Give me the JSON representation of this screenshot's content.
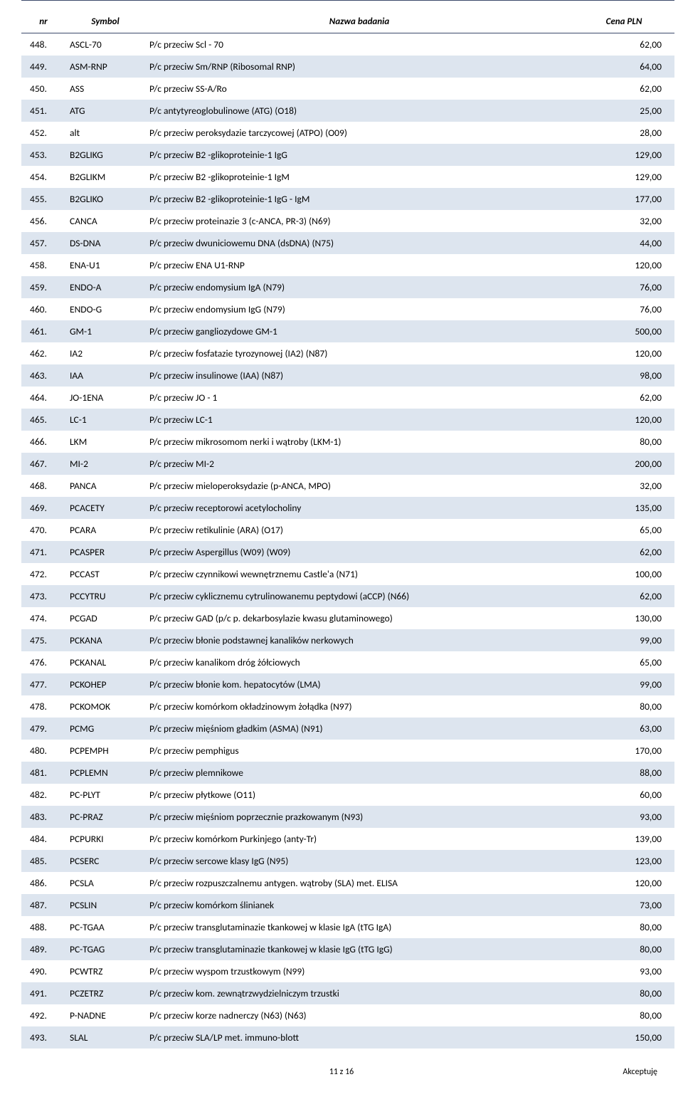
{
  "headers": {
    "nr": "nr",
    "symbol": "Symbol",
    "name": "Nazwa badania",
    "price": "Cena PLN"
  },
  "rows": [
    {
      "nr": "448.",
      "symbol": "ASCL-70",
      "name": "P/c przeciw  Scl - 70",
      "price": "62,00"
    },
    {
      "nr": "449.",
      "symbol": "ASM-RNP",
      "name": "P/c przeciw Sm/RNP (Ribosomal RNP)",
      "price": "64,00"
    },
    {
      "nr": "450.",
      "symbol": "ASS",
      "name": "P/c przeciw SS-A/Ro",
      "price": "62,00"
    },
    {
      "nr": "451.",
      "symbol": "ATG",
      "name": "P/c antytyreoglobulinowe (ATG) (O18)",
      "price": "25,00"
    },
    {
      "nr": "452.",
      "symbol": "alt",
      "name": "P/c przeciw peroksydazie tarczycowej (ATPO) (O09)",
      "price": "28,00"
    },
    {
      "nr": "453.",
      "symbol": "B2GLIKG",
      "name": "P/c przeciw B2 -glikoproteinie-1 IgG",
      "price": "129,00"
    },
    {
      "nr": "454.",
      "symbol": "B2GLIKM",
      "name": "P/c przeciw B2 -glikoproteinie-1 IgM",
      "price": "129,00"
    },
    {
      "nr": "455.",
      "symbol": "B2GLIKO",
      "name": "P/c przeciw B2 -glikoproteinie-1 IgG - IgM",
      "price": "177,00"
    },
    {
      "nr": "456.",
      "symbol": "CANCA",
      "name": "P/c przeciw proteinazie 3 (c-ANCA, PR-3) (N69)",
      "price": "32,00"
    },
    {
      "nr": "457.",
      "symbol": "DS-DNA",
      "name": "P/c przeciw dwuniciowemu DNA (dsDNA) (N75)",
      "price": "44,00"
    },
    {
      "nr": "458.",
      "symbol": "ENA-U1",
      "name": "P/c przeciw ENA U1-RNP",
      "price": "120,00"
    },
    {
      "nr": "459.",
      "symbol": "ENDO-A",
      "name": "P/c przeciw endomysium IgA (N79)",
      "price": "76,00"
    },
    {
      "nr": "460.",
      "symbol": "ENDO-G",
      "name": "P/c przeciw endomysium IgG (N79)",
      "price": "76,00"
    },
    {
      "nr": "461.",
      "symbol": "GM-1",
      "name": "P/c przeciw gangliozydowe GM-1",
      "price": "500,00"
    },
    {
      "nr": "462.",
      "symbol": "IA2",
      "name": "P/c przeciw fosfatazie tyrozynowej (IA2) (N87)",
      "price": "120,00"
    },
    {
      "nr": "463.",
      "symbol": "IAA",
      "name": "P/c przeciw insulinowe (IAA) (N87)",
      "price": "98,00"
    },
    {
      "nr": "464.",
      "symbol": "JO-1ENA",
      "name": "P/c przeciw JO - 1",
      "price": "62,00"
    },
    {
      "nr": "465.",
      "symbol": "LC-1",
      "name": "P/c przeciw LC-1",
      "price": "120,00"
    },
    {
      "nr": "466.",
      "symbol": "LKM",
      "name": "P/c przeciw mikrosomom nerki i wątroby (LKM-1)",
      "price": "80,00"
    },
    {
      "nr": "467.",
      "symbol": "MI-2",
      "name": "P/c przeciw MI-2",
      "price": "200,00"
    },
    {
      "nr": "468.",
      "symbol": "PANCA",
      "name": "P/c przeciw mieloperoksydazie (p-ANCA, MPO)",
      "price": "32,00"
    },
    {
      "nr": "469.",
      "symbol": "PCACETY",
      "name": "P/c przeciw receptorowi acetylocholiny",
      "price": "135,00"
    },
    {
      "nr": "470.",
      "symbol": "PCARA",
      "name": "P/c przeciw retikulinie (ARA) (O17)",
      "price": "65,00"
    },
    {
      "nr": "471.",
      "symbol": "PCASPER",
      "name": "P/c przeciw Aspergillus (W09) (W09)",
      "price": "62,00"
    },
    {
      "nr": "472.",
      "symbol": "PCCAST",
      "name": "P/c przeciw czynnikowi wewnętrznemu Castle'a (N71)",
      "price": "100,00"
    },
    {
      "nr": "473.",
      "symbol": "PCCYTRU",
      "name": "P/c przeciw cyklicznemu cytrulinowanemu peptydowi (aCCP) (N66)",
      "price": "62,00"
    },
    {
      "nr": "474.",
      "symbol": "PCGAD",
      "name": "P/c przeciw GAD (p/c p. dekarbosylazie kwasu glutaminowego)",
      "price": "130,00"
    },
    {
      "nr": "475.",
      "symbol": "PCKANA",
      "name": "P/c przeciw błonie podstawnej kanalików nerkowych",
      "price": "99,00"
    },
    {
      "nr": "476.",
      "symbol": "PCKANAL",
      "name": "P/c przeciw kanalikom dróg żółciowych",
      "price": "65,00"
    },
    {
      "nr": "477.",
      "symbol": "PCKOHEP",
      "name": "P/c przeciw błonie kom. hepatocytów (LMA)",
      "price": "99,00"
    },
    {
      "nr": "478.",
      "symbol": "PCKOMOK",
      "name": "P/c przeciw komórkom okładzinowym żołądka (N97)",
      "price": "80,00"
    },
    {
      "nr": "479.",
      "symbol": "PCMG",
      "name": "P/c przeciw mięśniom gładkim (ASMA) (N91)",
      "price": "63,00"
    },
    {
      "nr": "480.",
      "symbol": "PCPEMPH",
      "name": "P/c przeciw pemphigus",
      "price": "170,00"
    },
    {
      "nr": "481.",
      "symbol": "PCPLEMN",
      "name": "P/c przeciw plemnikowe",
      "price": "88,00"
    },
    {
      "nr": "482.",
      "symbol": "PC-PLYT",
      "name": "P/c przeciw płytkowe (O11)",
      "price": "60,00"
    },
    {
      "nr": "483.",
      "symbol": "PC-PRAZ",
      "name": "P/c przeciw mięśniom poprzecznie prazkowanym (N93)",
      "price": "93,00"
    },
    {
      "nr": "484.",
      "symbol": "PCPURKI",
      "name": "P/c przeciw komórkom Purkinjego (anty-Tr)",
      "price": "139,00"
    },
    {
      "nr": "485.",
      "symbol": "PCSERC",
      "name": "P/c przeciw sercowe klasy IgG (N95)",
      "price": "123,00"
    },
    {
      "nr": "486.",
      "symbol": "PCSLA",
      "name": "P/c przeciw rozpuszczalnemu antygen. wątroby (SLA) met. ELISA",
      "price": "120,00"
    },
    {
      "nr": "487.",
      "symbol": "PCSLIN",
      "name": "P/c przeciw komórkom ślinianek",
      "price": "73,00"
    },
    {
      "nr": "488.",
      "symbol": "PC-TGAA",
      "name": "P/c przeciw transglutaminazie tkankowej w klasie IgA (tTG IgA)",
      "price": "80,00"
    },
    {
      "nr": "489.",
      "symbol": "PC-TGAG",
      "name": "P/c przeciw transglutaminazie tkankowej w klasie IgG (tTG IgG)",
      "price": "80,00"
    },
    {
      "nr": "490.",
      "symbol": "PCWTRZ",
      "name": "P/c przeciw wyspom trzustkowym (N99)",
      "price": "93,00"
    },
    {
      "nr": "491.",
      "symbol": "PCZETRZ",
      "name": "P/c przeciw kom. zewnątrzwydzielniczym trzustki",
      "price": "80,00"
    },
    {
      "nr": "492.",
      "symbol": "P-NADNE",
      "name": "P/c przeciw korze nadnerczy (N63) (N63)",
      "price": "80,00"
    },
    {
      "nr": "493.",
      "symbol": "SLAL",
      "name": "P/c przeciw SLA/LP met. immuno-blott",
      "price": "150,00"
    }
  ],
  "footer": {
    "page": "11 z 16",
    "accept": "Akceptuję"
  }
}
